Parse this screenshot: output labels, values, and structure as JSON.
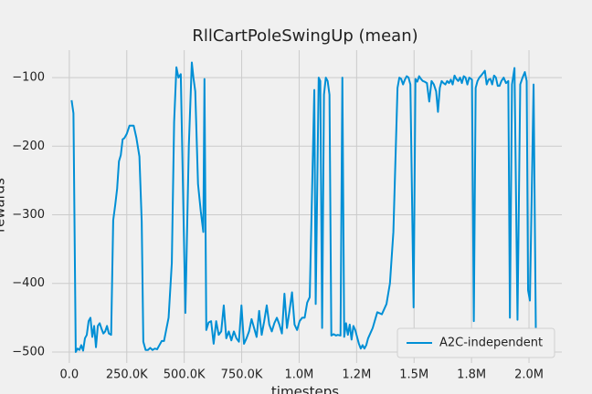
{
  "chart_data": {
    "type": "line",
    "title": "RllCartPoleSwingUp (mean)",
    "x_label": "timesteps",
    "y_label": "rewards",
    "x": [
      10000,
      18000,
      28000,
      36000,
      44000,
      52000,
      60000,
      68000,
      76000,
      84000,
      92000,
      100000,
      108000,
      116000,
      124000,
      132000,
      140000,
      148000,
      156000,
      164000,
      172000,
      182000,
      191000,
      200000,
      208000,
      216000,
      224000,
      232000,
      240000,
      250000,
      262000,
      280000,
      292000,
      305000,
      315000,
      322000,
      332000,
      342000,
      352000,
      362000,
      372000,
      382000,
      392000,
      402000,
      412000,
      422000,
      432000,
      446000,
      456000,
      466000,
      475000,
      485000,
      505000,
      520000,
      533000,
      540000,
      548000,
      560000,
      572000,
      583000,
      588000,
      596000,
      606000,
      617000,
      628000,
      639000,
      650000,
      661000,
      672000,
      683000,
      694000,
      705000,
      716000,
      727000,
      738000,
      749000,
      760000,
      771000,
      782000,
      793000,
      804000,
      815000,
      826000,
      837000,
      848000,
      859000,
      870000,
      881000,
      892000,
      903000,
      914000,
      925000,
      936000,
      947000,
      958000,
      969000,
      980000,
      991000,
      1002000,
      1013000,
      1024000,
      1035000,
      1046000,
      1066000,
      1072000,
      1085000,
      1092000,
      1100000,
      1108000,
      1116000,
      1124000,
      1132000,
      1140000,
      1150000,
      1160000,
      1168000,
      1180000,
      1188000,
      1196000,
      1204000,
      1212000,
      1220000,
      1228000,
      1236000,
      1244000,
      1252000,
      1260000,
      1268000,
      1276000,
      1284000,
      1292000,
      1300000,
      1320000,
      1340000,
      1360000,
      1380000,
      1395000,
      1410000,
      1428000,
      1436000,
      1444000,
      1452000,
      1460000,
      1468000,
      1476000,
      1484000,
      1498000,
      1506000,
      1514000,
      1522000,
      1530000,
      1538000,
      1546000,
      1556000,
      1566000,
      1576000,
      1586000,
      1596000,
      1604000,
      1612000,
      1620000,
      1628000,
      1636000,
      1644000,
      1652000,
      1660000,
      1668000,
      1676000,
      1684000,
      1692000,
      1700000,
      1708000,
      1716000,
      1724000,
      1732000,
      1740000,
      1752000,
      1760000,
      1768000,
      1776000,
      1784000,
      1792000,
      1808000,
      1816000,
      1824000,
      1832000,
      1840000,
      1848000,
      1856000,
      1864000,
      1872000,
      1880000,
      1890000,
      1900000,
      1910000,
      1917000,
      1926000,
      1937000,
      1950000,
      1962000,
      1972000,
      1982000,
      1990000,
      1996000,
      2004000,
      2020000,
      2030000,
      2036000
    ],
    "series": [
      {
        "name": "A2C-independent",
        "color": "#008fd5",
        "values": [
          -133,
          -152,
          -500,
          -495,
          -497,
          -490,
          -498,
          -480,
          -475,
          -455,
          -450,
          -478,
          -462,
          -493,
          -462,
          -458,
          -466,
          -473,
          -470,
          -462,
          -473,
          -475,
          -308,
          -285,
          -262,
          -222,
          -213,
          -190,
          -188,
          -182,
          -170,
          -170,
          -188,
          -215,
          -310,
          -485,
          -497,
          -497,
          -494,
          -497,
          -495,
          -496,
          -490,
          -484,
          -484,
          -467,
          -450,
          -370,
          -165,
          -85,
          -100,
          -95,
          -443,
          -200,
          -78,
          -100,
          -120,
          -255,
          -295,
          -325,
          -102,
          -468,
          -457,
          -455,
          -488,
          -455,
          -475,
          -470,
          -432,
          -480,
          -470,
          -483,
          -470,
          -480,
          -485,
          -432,
          -488,
          -480,
          -470,
          -452,
          -465,
          -478,
          -440,
          -475,
          -455,
          -432,
          -460,
          -470,
          -458,
          -450,
          -460,
          -473,
          -415,
          -465,
          -440,
          -413,
          -460,
          -468,
          -455,
          -450,
          -450,
          -428,
          -420,
          -118,
          -430,
          -100,
          -105,
          -465,
          -125,
          -100,
          -105,
          -125,
          -476,
          -474,
          -476,
          -475,
          -476,
          -100,
          -478,
          -458,
          -475,
          -460,
          -482,
          -462,
          -468,
          -478,
          -488,
          -495,
          -490,
          -495,
          -490,
          -480,
          -465,
          -442,
          -445,
          -430,
          -400,
          -325,
          -115,
          -100,
          -102,
          -110,
          -103,
          -98,
          -100,
          -110,
          -435,
          -102,
          -106,
          -98,
          -102,
          -105,
          -106,
          -108,
          -135,
          -105,
          -110,
          -120,
          -150,
          -115,
          -105,
          -108,
          -110,
          -105,
          -108,
          -103,
          -110,
          -97,
          -102,
          -105,
          -100,
          -108,
          -98,
          -100,
          -110,
          -100,
          -103,
          -455,
          -115,
          -105,
          -100,
          -97,
          -90,
          -110,
          -103,
          -102,
          -110,
          -97,
          -100,
          -112,
          -112,
          -105,
          -100,
          -108,
          -105,
          -450,
          -110,
          -86,
          -453,
          -110,
          -100,
          -92,
          -105,
          -410,
          -425,
          -110,
          -475,
          -470
        ]
      }
    ],
    "xlim": [
      -75000,
      2143000
    ],
    "ylim": [
      -516,
      -60
    ],
    "xticks": [
      {
        "value": 0,
        "label": "0.0"
      },
      {
        "value": 250000,
        "label": "250.0K"
      },
      {
        "value": 500000,
        "label": "500.0K"
      },
      {
        "value": 750000,
        "label": "750.0K"
      },
      {
        "value": 1000000,
        "label": "1.0M"
      },
      {
        "value": 1250000,
        "label": "1.2M"
      },
      {
        "value": 1500000,
        "label": "1.5M"
      },
      {
        "value": 1750000,
        "label": "1.8M"
      },
      {
        "value": 2000000,
        "label": "2.0M"
      }
    ],
    "yticks": [
      {
        "value": -500,
        "label": "−500"
      },
      {
        "value": -400,
        "label": "−400"
      },
      {
        "value": -300,
        "label": "−300"
      },
      {
        "value": -200,
        "label": "−200"
      },
      {
        "value": -100,
        "label": "−100"
      }
    ],
    "grid": true,
    "legend": "lower right"
  }
}
